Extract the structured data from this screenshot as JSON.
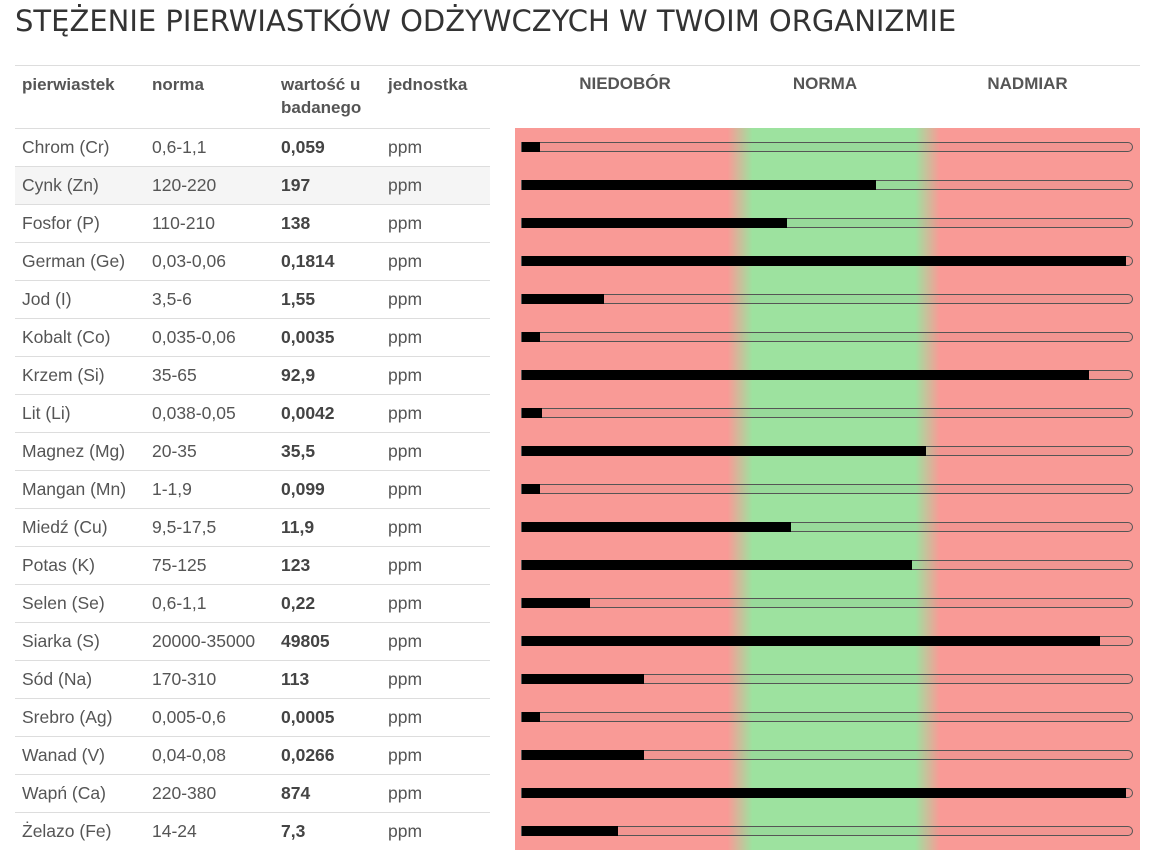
{
  "title": "STĘŻENIE PIERWIASTKÓW ODŻYWCZYCH W TWOIM ORGANIZMIE",
  "headers": {
    "element": "pierwiastek",
    "norm": "norma",
    "value_l1": "wartość u",
    "value_l2": "badanego",
    "unit": "jednostka",
    "deficit": "NIEDOBÓR",
    "normal": "NORMA",
    "excess": "NADMIAR"
  },
  "colors": {
    "deficit_band": "#f99a96",
    "norm_band": "#9de29f",
    "bar_fill": "#000000"
  },
  "rows": [
    {
      "name": "Chrom (Cr)",
      "norm": "0,6-1,1",
      "value": "0,059",
      "unit": "ppm",
      "level": 0.03
    },
    {
      "name": "Cynk (Zn)",
      "norm": "120-220",
      "value": "197",
      "unit": "ppm",
      "level": 0.58
    },
    {
      "name": "Fosfor (P)",
      "norm": "110-210",
      "value": "138",
      "unit": "ppm",
      "level": 0.435
    },
    {
      "name": "German (Ge)",
      "norm": "0,03-0,06",
      "value": "0,1814",
      "unit": "ppm",
      "level": 0.99
    },
    {
      "name": "Jod (I)",
      "norm": "3,5-6",
      "value": "1,55",
      "unit": "ppm",
      "level": 0.135
    },
    {
      "name": "Kobalt (Co)",
      "norm": "0,035-0,06",
      "value": "0,0035",
      "unit": "ppm",
      "level": 0.03
    },
    {
      "name": "Krzem (Si)",
      "norm": "35-65",
      "value": "92,9",
      "unit": "ppm",
      "level": 0.93
    },
    {
      "name": "Lit (Li)",
      "norm": "0,038-0,05",
      "value": "0,0042",
      "unit": "ppm",
      "level": 0.033
    },
    {
      "name": "Magnez (Mg)",
      "norm": "20-35",
      "value": "35,5",
      "unit": "ppm",
      "level": 0.662
    },
    {
      "name": "Mangan (Mn)",
      "norm": "1-1,9",
      "value": "0,099",
      "unit": "ppm",
      "level": 0.03
    },
    {
      "name": "Miedź (Cu)",
      "norm": "9,5-17,5",
      "value": "11,9",
      "unit": "ppm",
      "level": 0.441
    },
    {
      "name": "Potas (K)",
      "norm": "75-125",
      "value": "123",
      "unit": "ppm",
      "level": 0.639
    },
    {
      "name": "Selen (Se)",
      "norm": "0,6-1,1",
      "value": "0,22",
      "unit": "ppm",
      "level": 0.112
    },
    {
      "name": "Siarka (S)",
      "norm": "20000-35000",
      "value": "49805",
      "unit": "ppm",
      "level": 0.947
    },
    {
      "name": "Sód (Na)",
      "norm": "170-310",
      "value": "113",
      "unit": "ppm",
      "level": 0.2
    },
    {
      "name": "Srebro (Ag)",
      "norm": "0,005-0,6",
      "value": "0,0005",
      "unit": "ppm",
      "level": 0.03
    },
    {
      "name": "Wanad (V)",
      "norm": "0,04-0,08",
      "value": "0,0266",
      "unit": "ppm",
      "level": 0.2
    },
    {
      "name": "Wapń (Ca)",
      "norm": "220-380",
      "value": "874",
      "unit": "ppm",
      "level": 0.99
    },
    {
      "name": "Żelazo (Fe)",
      "norm": "14-24",
      "value": "7,3",
      "unit": "ppm",
      "level": 0.158
    }
  ]
}
